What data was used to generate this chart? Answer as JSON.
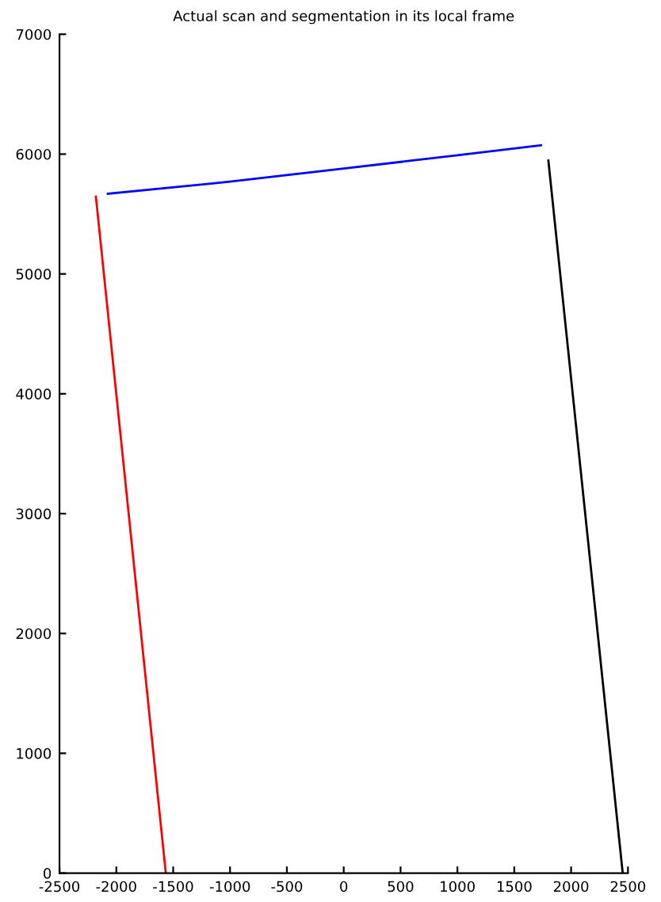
{
  "chart_data": {
    "type": "line",
    "title": "Actual scan and segmentation in its local frame",
    "series": [
      {
        "color": "#ff0000",
        "x": [
          -2180,
          -1565
        ],
        "values": [
          5646,
          0
        ]
      },
      {
        "color": "#0000ff",
        "x": [
          -2075,
          -1000,
          0,
          1000,
          1735
        ],
        "values": [
          5669,
          5770,
          5880,
          5990,
          6074
        ]
      },
      {
        "color": "#000000",
        "x": [
          1800,
          2454
        ],
        "values": [
          5947,
          0
        ]
      }
    ],
    "xlim": [
      -2500,
      2500
    ],
    "xticks": [
      -2500,
      -2000,
      -1500,
      -1000,
      -500,
      0,
      500,
      1000,
      1500,
      2000,
      2500
    ],
    "ylim": [
      0,
      7000
    ],
    "yticks": [
      0,
      1000,
      2000,
      3000,
      4000,
      5000,
      6000,
      7000
    ],
    "grid": false,
    "legend": false,
    "marker": "none",
    "line_style": "solid"
  }
}
